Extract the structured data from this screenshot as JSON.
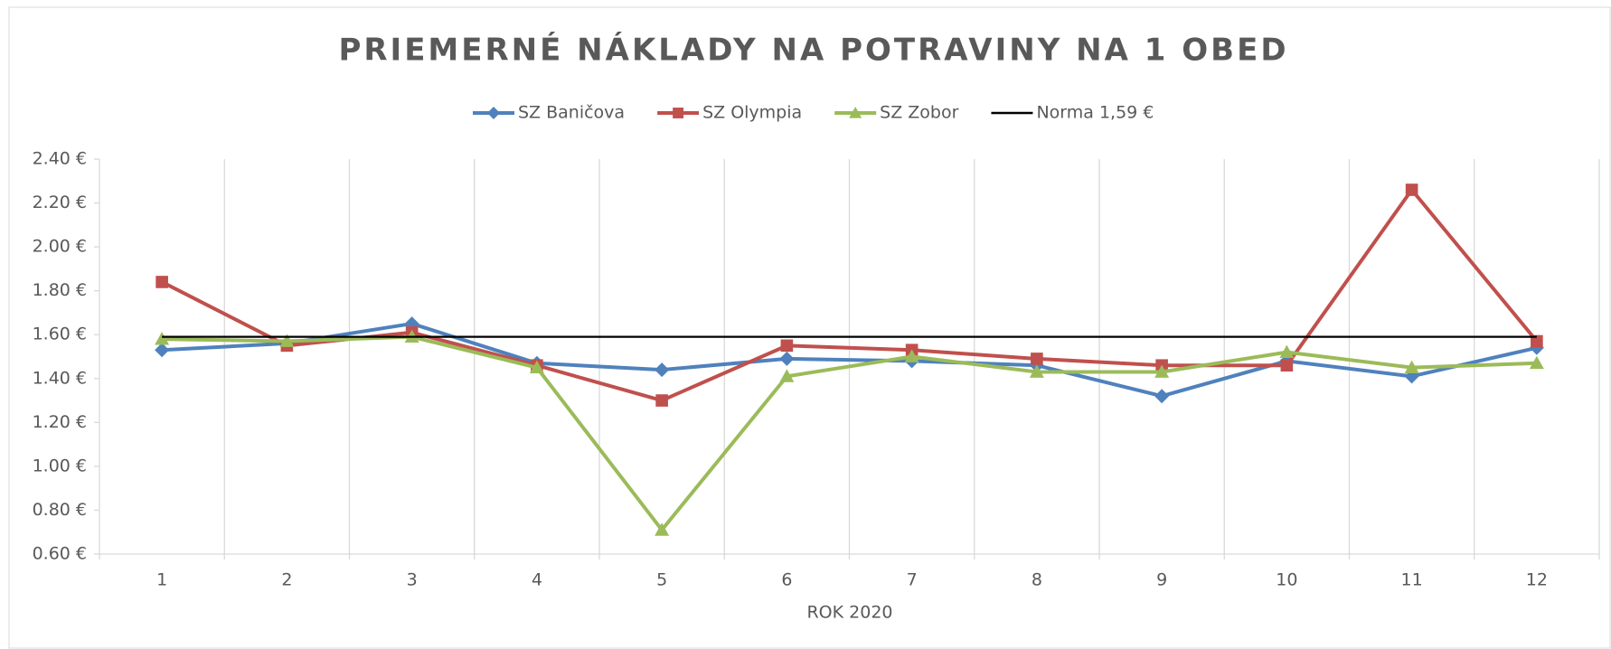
{
  "chart_data": {
    "type": "line",
    "title": "PRIEMERNÉ NÁKLADY NA POTRAVINY NA 1 OBED",
    "x_label": "ROK 2020",
    "categories": [
      "1",
      "2",
      "3",
      "4",
      "5",
      "6",
      "7",
      "8",
      "9",
      "10",
      "11",
      "12"
    ],
    "series": [
      {
        "name": "SZ Baničova",
        "color": "#4f81bd",
        "marker": "diamond",
        "values": [
          1.53,
          1.56,
          1.65,
          1.47,
          1.44,
          1.49,
          1.48,
          1.46,
          1.32,
          1.48,
          1.41,
          1.54
        ]
      },
      {
        "name": "SZ Olympia",
        "color": "#c0504d",
        "marker": "square",
        "values": [
          1.84,
          1.55,
          1.61,
          1.46,
          1.3,
          1.55,
          1.53,
          1.49,
          1.46,
          1.46,
          2.26,
          1.57
        ]
      },
      {
        "name": "SZ Zobor",
        "color": "#9bbb59",
        "marker": "triangle",
        "values": [
          1.58,
          1.57,
          1.59,
          1.45,
          0.71,
          1.41,
          1.5,
          1.43,
          1.43,
          1.52,
          1.45,
          1.47
        ]
      },
      {
        "name": "Norma 1,59 €",
        "color": "#000000",
        "marker": "none",
        "values": [
          1.59,
          1.59,
          1.59,
          1.59,
          1.59,
          1.59,
          1.59,
          1.59,
          1.59,
          1.59,
          1.59,
          1.59
        ]
      }
    ],
    "ylim": [
      0.6,
      2.4
    ],
    "yticks": [
      {
        "value": 0.6,
        "label": "0.60 €"
      },
      {
        "value": 0.8,
        "label": "0.80 €"
      },
      {
        "value": 1.0,
        "label": "1.00 €"
      },
      {
        "value": 1.2,
        "label": "1.20 €"
      },
      {
        "value": 1.4,
        "label": "1.40 €"
      },
      {
        "value": 1.6,
        "label": "1.60 €"
      },
      {
        "value": 1.8,
        "label": "1.80 €"
      },
      {
        "value": 2.0,
        "label": "2.00 €"
      },
      {
        "value": 2.2,
        "label": "2.20 €"
      },
      {
        "value": 2.4,
        "label": "2.40 €"
      }
    ],
    "legend": "top"
  }
}
